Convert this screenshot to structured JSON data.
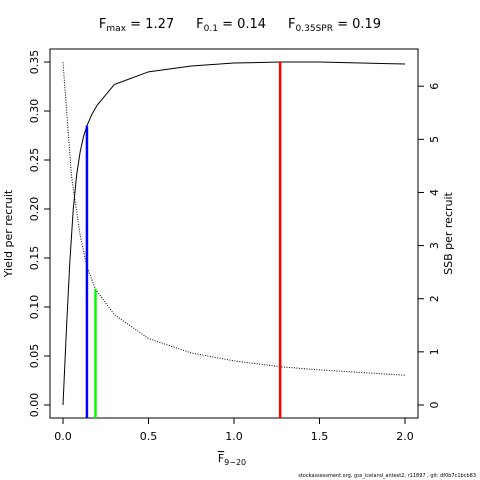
{
  "chart_data": {
    "type": "line",
    "title_parts": [
      {
        "main": "F",
        "sub": "max",
        "rest": " = 1.27"
      },
      {
        "main": "F",
        "sub": "0.1",
        "rest": " = 0.14"
      },
      {
        "main": "F",
        "sub": "0.35SPR",
        "rest": " = 0.19"
      }
    ],
    "x_label": {
      "main": "F",
      "sub": "9−20"
    },
    "y_label": "Yield per recruit",
    "y2_label": "SSB per recruit",
    "footer": "stockassessment.org, gss_iceland_antest2, r11897 , git: df0b7c1bcb83",
    "xlim": [
      -0.076,
      2.076
    ],
    "ylim": [
      -0.0133,
      0.3633
    ],
    "y2lim": [
      -0.245,
      6.7
    ],
    "xticks": [
      {
        "value": 0,
        "label": "0.0"
      },
      0.5,
      {
        "value": 1,
        "label": "1.0"
      },
      1.5,
      {
        "value": 2,
        "label": "2.0"
      }
    ],
    "yticks": [
      {
        "value": 0,
        "label": "0.00"
      },
      0.05,
      {
        "value": 0.1,
        "label": "0.10"
      },
      0.15,
      {
        "value": 0.2,
        "label": "0.20"
      },
      0.25,
      {
        "value": 0.3,
        "label": "0.30"
      },
      0.35
    ],
    "y2ticks": [
      0,
      1,
      2,
      3,
      4,
      5,
      6
    ],
    "series": [
      {
        "name": "Yield per recruit",
        "color": "#000000",
        "style": "solid",
        "x": [
          0,
          0.02,
          0.04,
          0.06,
          0.08,
          0.1,
          0.12,
          0.14,
          0.17,
          0.2,
          0.3,
          0.5,
          0.75,
          1.0,
          1.27,
          1.5,
          2.0
        ],
        "values": [
          0,
          0.077,
          0.146,
          0.2,
          0.235,
          0.258,
          0.274,
          0.285,
          0.297,
          0.306,
          0.327,
          0.34,
          0.346,
          0.349,
          0.35,
          0.35,
          0.348
        ]
      },
      {
        "name": "SSB per recruit",
        "color": "#000000",
        "style": "dotted",
        "axis": "y2",
        "x": [
          0,
          0.05,
          0.1,
          0.14,
          0.19,
          0.3,
          0.5,
          0.75,
          1.0,
          1.27,
          1.5,
          2.0
        ],
        "values": [
          6.45,
          4.3,
          3.2,
          2.6,
          2.18,
          1.7,
          1.25,
          0.98,
          0.83,
          0.72,
          0.66,
          0.56
        ]
      }
    ],
    "reference_lines": [
      {
        "x": 1.27,
        "value": 0.35,
        "color": "#ff0000"
      },
      {
        "x": 0.14,
        "value": 0.285,
        "color": "#0000ff"
      },
      {
        "x": 0.19,
        "value": 2.18,
        "color": "#00ff00",
        "axis": "y2"
      }
    ]
  }
}
